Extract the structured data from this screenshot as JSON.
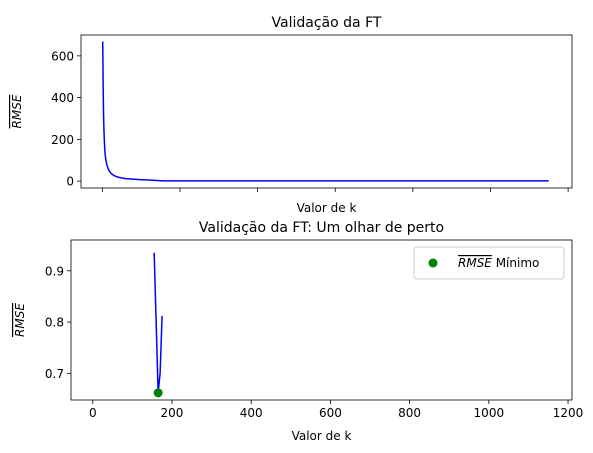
{
  "chart_data": [
    {
      "type": "line",
      "title": "Validação da FT",
      "xlabel": "Valor de k",
      "ylabel": "RMSE",
      "ylabel_overline": true,
      "xlim": [
        -55,
        1210
      ],
      "ylim": [
        -33,
        700
      ],
      "xticks": [
        0,
        200,
        400,
        600,
        800,
        1000,
        1200
      ],
      "show_xticklabels": false,
      "yticks": [
        0,
        200,
        400,
        600
      ],
      "ytick_labels": [
        "0",
        "200",
        "400",
        "600"
      ],
      "grid": false,
      "series": [
        {
          "color": "#0000ff",
          "x": [
            1,
            2,
            3,
            4,
            5,
            6,
            7,
            8,
            10,
            12,
            15,
            18,
            22,
            27,
            33,
            40,
            50,
            60,
            75,
            90,
            110,
            130,
            150,
            160,
            170,
            200,
            300,
            400,
            600,
            800,
            1000,
            1150
          ],
          "y": [
            668,
            470,
            330,
            250,
            200,
            160,
            135,
            115,
            92,
            75,
            60,
            48,
            38,
            30,
            24,
            19,
            15,
            12,
            10,
            8,
            6,
            4,
            2,
            1,
            1,
            1,
            1,
            1,
            1,
            1,
            1,
            1
          ]
        }
      ]
    },
    {
      "type": "line",
      "title": "Validação da FT: Um olhar de perto",
      "xlabel": "Valor de k",
      "ylabel": "RMSE",
      "ylabel_overline": true,
      "xlim": [
        -55,
        1210
      ],
      "ylim": [
        0.648,
        0.96
      ],
      "xticks": [
        0,
        200,
        400,
        600,
        800,
        1000,
        1200
      ],
      "xtick_labels": [
        "0",
        "200",
        "400",
        "600",
        "800",
        "1000",
        "1200"
      ],
      "yticks": [
        0.7,
        0.8,
        0.9
      ],
      "ytick_labels": [
        "0.7",
        "0.8",
        "0.9"
      ],
      "grid": false,
      "legend_position": "top-right",
      "series": [
        {
          "color": "#0000ff",
          "x": [
            155,
            160,
            165,
            170,
            175
          ],
          "y": [
            0.935,
            0.8,
            0.662,
            0.7,
            0.812
          ]
        }
      ],
      "marker": {
        "label": "RMSE Mínimo",
        "label_overline_part": "RMSE",
        "label_rest": " Mínimo",
        "x": 165,
        "y": 0.662,
        "color": "#008000"
      }
    }
  ]
}
